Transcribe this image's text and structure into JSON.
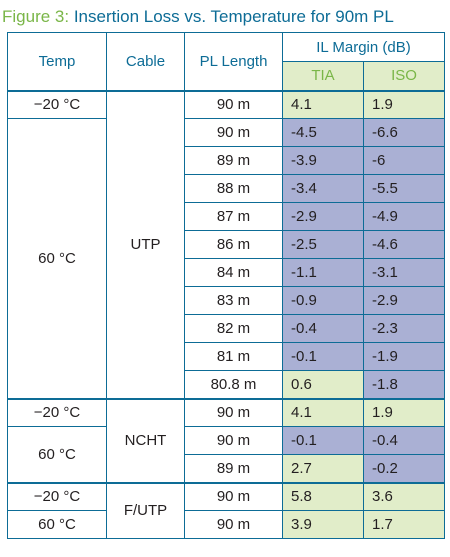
{
  "figure": {
    "label": "Figure 3:",
    "title": "Insertion Loss vs. Temperature for 90m PL"
  },
  "headers": {
    "temp": "Temp",
    "cable": "Cable",
    "pl_length": "PL Length",
    "il_margin": "IL Margin (dB)",
    "tia": "TIA",
    "iso": "ISO"
  },
  "cells": {
    "temp_neg20_utp": "−20 °C",
    "temp_60_utp": "60 °C",
    "cable_utp": "UTP",
    "temp_neg20_ncht": "−20 °C",
    "temp_60_ncht": "60 °C",
    "cable_ncht": "NCHT",
    "temp_neg20_futp": "−20 °C",
    "temp_60_futp": "60 °C",
    "cable_futp": "F/UTP"
  },
  "rows": [
    {
      "pl": "90 m",
      "tia": "4.1",
      "iso": "1.9",
      "tia_color": "green",
      "iso_color": "green"
    },
    {
      "pl": "90 m",
      "tia": "-4.5",
      "iso": "-6.6",
      "tia_color": "purple",
      "iso_color": "purple"
    },
    {
      "pl": "89 m",
      "tia": "-3.9",
      "iso": "-6",
      "tia_color": "purple",
      "iso_color": "purple"
    },
    {
      "pl": "88 m",
      "tia": "-3.4",
      "iso": "-5.5",
      "tia_color": "purple",
      "iso_color": "purple"
    },
    {
      "pl": "87 m",
      "tia": "-2.9",
      "iso": "-4.9",
      "tia_color": "purple",
      "iso_color": "purple"
    },
    {
      "pl": "86 m",
      "tia": "-2.5",
      "iso": "-4.6",
      "tia_color": "purple",
      "iso_color": "purple"
    },
    {
      "pl": "84 m",
      "tia": "-1.1",
      "iso": "-3.1",
      "tia_color": "purple",
      "iso_color": "purple"
    },
    {
      "pl": "83 m",
      "tia": "-0.9",
      "iso": "-2.9",
      "tia_color": "purple",
      "iso_color": "purple"
    },
    {
      "pl": "82 m",
      "tia": "-0.4",
      "iso": "-2.3",
      "tia_color": "purple",
      "iso_color": "purple"
    },
    {
      "pl": "81 m",
      "tia": "-0.1",
      "iso": "-1.9",
      "tia_color": "purple",
      "iso_color": "purple"
    },
    {
      "pl": "80.8 m",
      "tia": "0.6",
      "iso": "-1.8",
      "tia_color": "green",
      "iso_color": "purple"
    },
    {
      "pl": "90 m",
      "tia": "4.1",
      "iso": "1.9",
      "tia_color": "green",
      "iso_color": "green"
    },
    {
      "pl": "90 m",
      "tia": "-0.1",
      "iso": "-0.4",
      "tia_color": "purple",
      "iso_color": "purple"
    },
    {
      "pl": "89 m",
      "tia": "2.7",
      "iso": "-0.2",
      "tia_color": "green",
      "iso_color": "purple"
    },
    {
      "pl": "90 m",
      "tia": "5.8",
      "iso": "3.6",
      "tia_color": "green",
      "iso_color": "green"
    },
    {
      "pl": "90 m",
      "tia": "3.9",
      "iso": "1.7",
      "tia_color": "green",
      "iso_color": "green"
    }
  ],
  "colors": {
    "green": "#e1edc9",
    "purple": "#aab0d4",
    "border": "#0d6c96",
    "title_label": "#7ab648",
    "title_text": "#0d6c96"
  }
}
